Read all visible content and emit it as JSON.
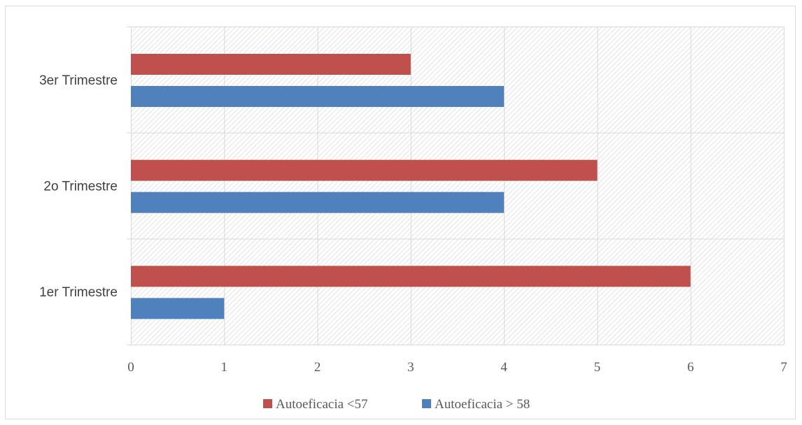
{
  "chart_data": {
    "type": "bar",
    "orientation": "horizontal",
    "categories": [
      "1er Trimestre",
      "2o Trimestre",
      "3er Trimestre"
    ],
    "series": [
      {
        "name": "Autoeficacia > 58",
        "values": [
          1,
          4,
          4
        ],
        "color": "#4f81bd"
      },
      {
        "name": "Autoeficacia <57",
        "values": [
          6,
          5,
          3
        ],
        "color": "#c0504d"
      }
    ],
    "xlim": [
      0,
      7
    ],
    "xticks": [
      0,
      1,
      2,
      3,
      4,
      5,
      6,
      7
    ],
    "title": "",
    "xlabel": "",
    "ylabel": "",
    "grid": true,
    "legend_position": "bottom",
    "legend_order": [
      "Autoeficacia <57",
      "Autoeficacia > 58"
    ],
    "plot_background": "hatched-light-gray"
  }
}
